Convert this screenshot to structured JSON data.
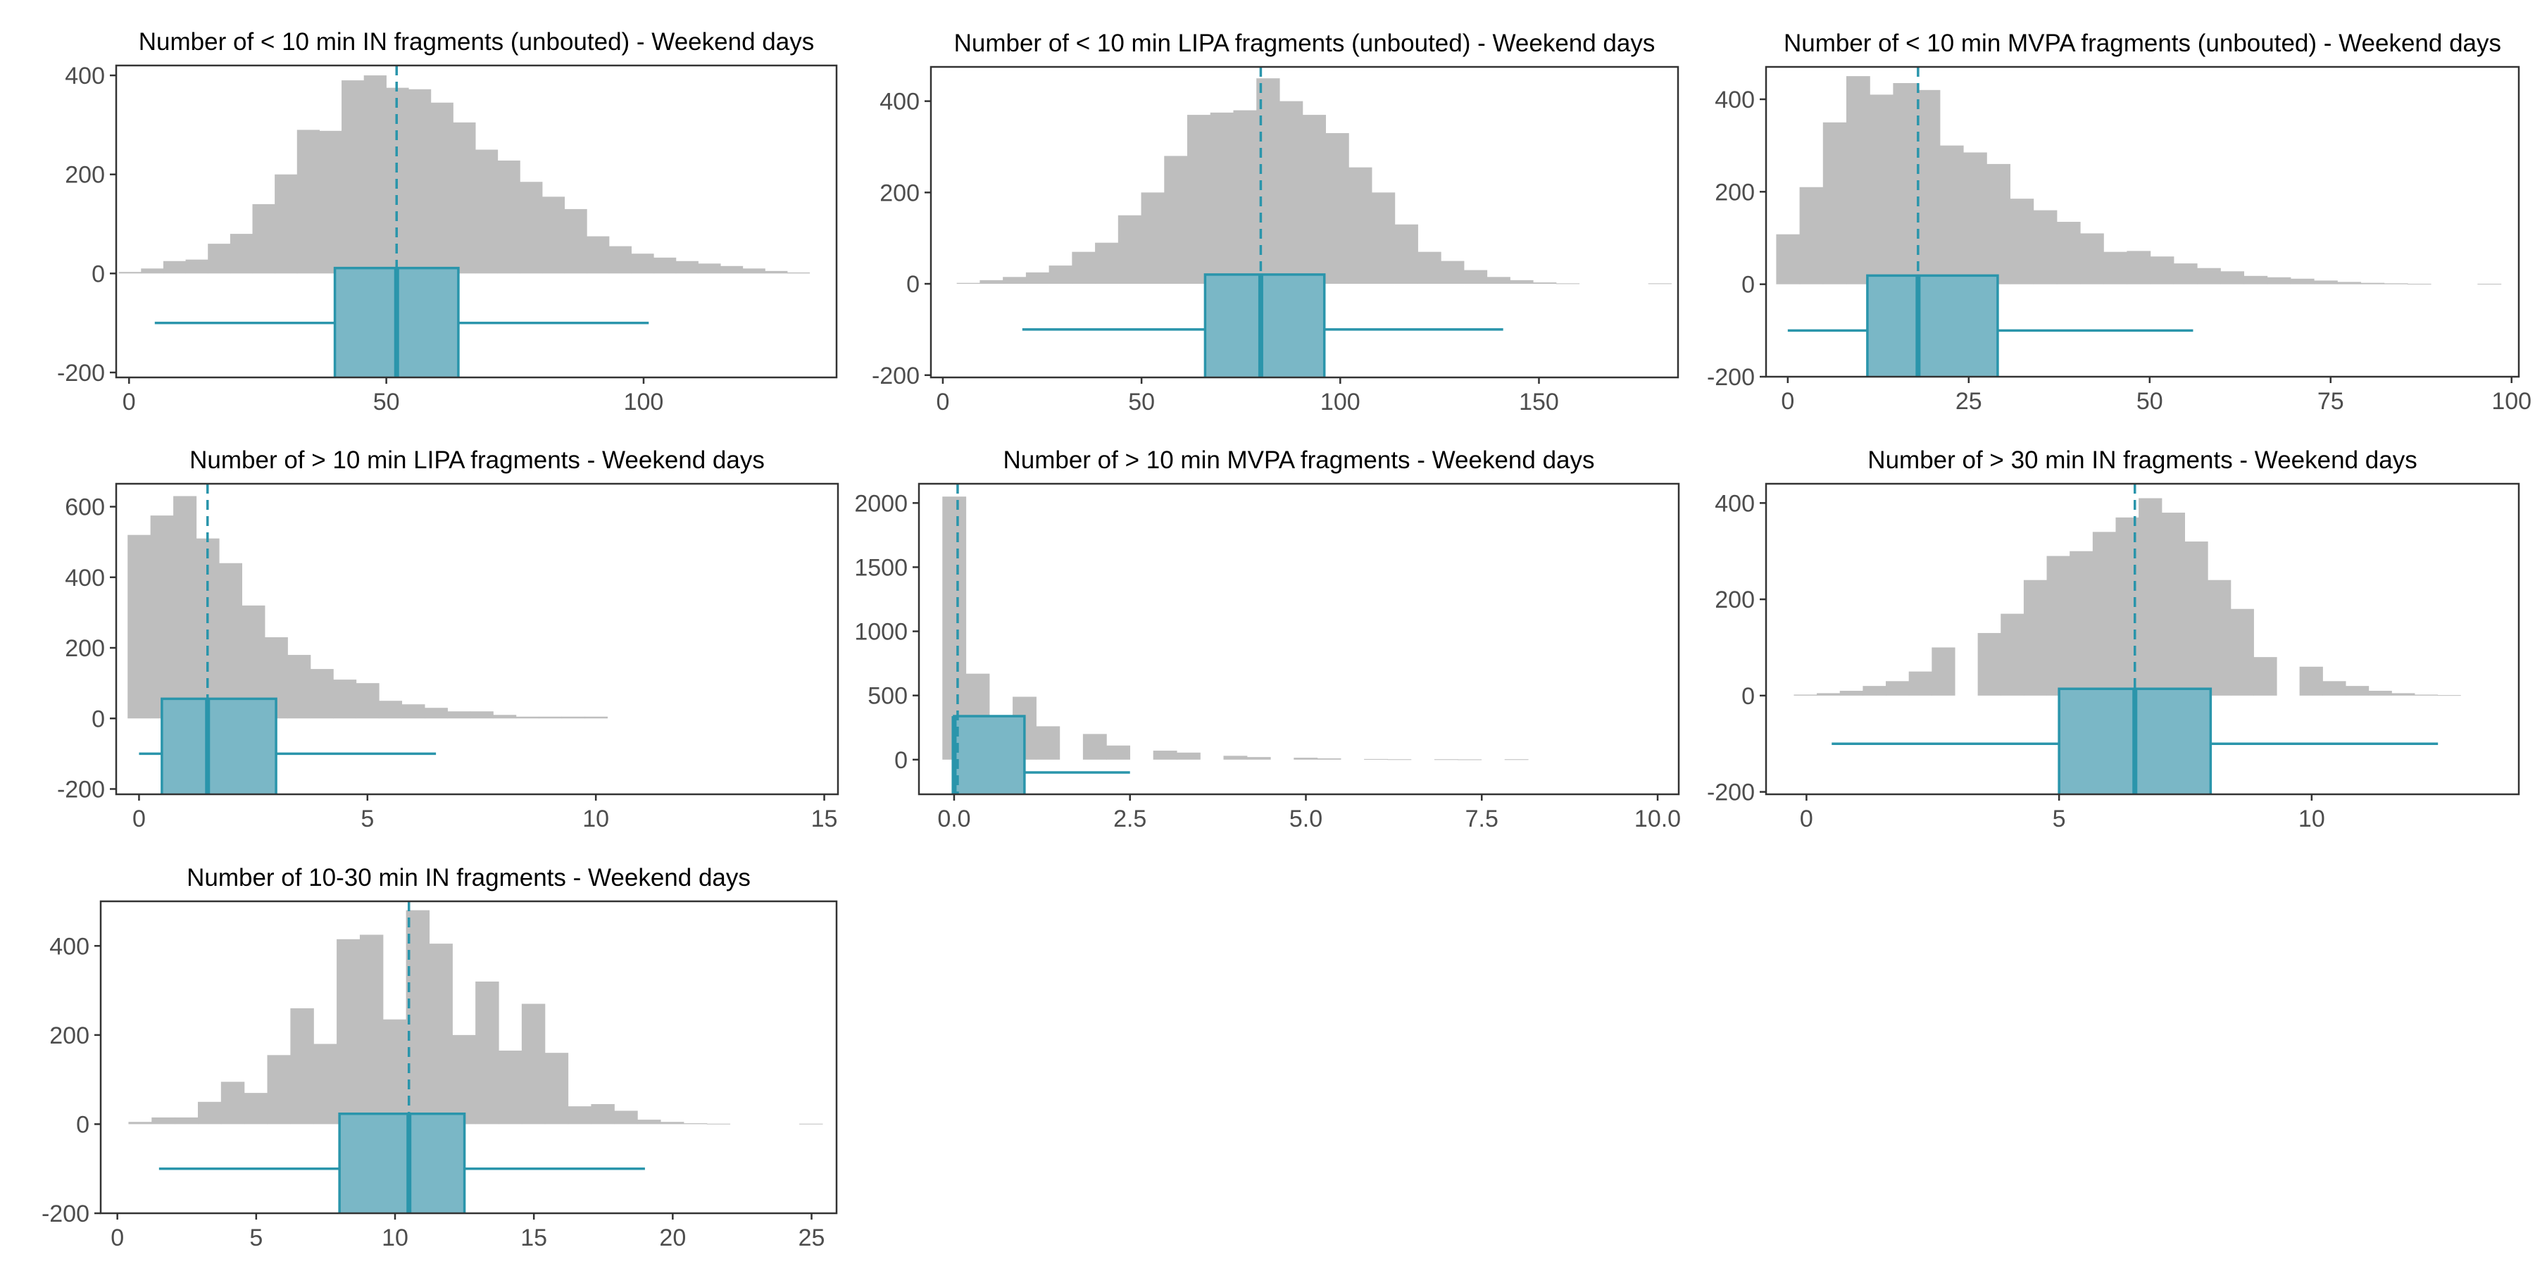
{
  "colors": {
    "histogram": "#bebebe",
    "box_fill": "#7ab7c6",
    "box_line": "#2a95ab",
    "mean_line": "#2a95ab",
    "axis": "#333333",
    "tick_text": "#4d4d4d",
    "title_text": "#000000"
  },
  "chart_data": [
    {
      "type": "bar",
      "title": "Number of < 10 min IN fragments (unbouted) - Weekend days",
      "xlim": [
        -2.5,
        137.5
      ],
      "ylim": [
        -210,
        420
      ],
      "x_ticks": [
        0,
        50,
        100
      ],
      "y_ticks": [
        -200,
        0,
        200,
        400
      ],
      "bin_width": 4.33,
      "bins_start": -2.0,
      "counts": [
        3,
        10,
        25,
        28,
        60,
        80,
        140,
        200,
        290,
        288,
        390,
        400,
        375,
        372,
        345,
        305,
        250,
        228,
        185,
        155,
        130,
        75,
        55,
        40,
        32,
        25,
        20,
        15,
        10,
        5,
        2
      ],
      "boxplot": {
        "whisker_low": 5,
        "q1": 40,
        "median": 52,
        "q3": 64,
        "whisker_high": 101,
        "y_center": -100,
        "half_height": 78
      },
      "mean_line_x": 52
    },
    {
      "type": "bar",
      "title": "Number of < 10 min LIPA fragments (unbouted) - Weekend days",
      "xlim": [
        -3,
        185
      ],
      "ylim": [
        -205,
        475
      ],
      "x_ticks": [
        0,
        50,
        100,
        150
      ],
      "y_ticks": [
        -200,
        0,
        200,
        400
      ],
      "bin_width": 5.8,
      "bins_start": 3.5,
      "counts": [
        2,
        8,
        15,
        25,
        40,
        70,
        90,
        150,
        200,
        280,
        370,
        375,
        380,
        450,
        400,
        370,
        330,
        255,
        200,
        130,
        70,
        50,
        30,
        15,
        8,
        3,
        1,
        0,
        0,
        0,
        1
      ],
      "boxplot": {
        "whisker_low": 20,
        "q1": 66,
        "median": 80,
        "q3": 96,
        "whisker_high": 141,
        "y_center": -100,
        "half_height": 78
      },
      "mean_line_x": 80
    },
    {
      "type": "bar",
      "title": "Number of < 10 min MVPA fragments (unbouted) - Weekend days",
      "xlim": [
        -3,
        101
      ],
      "ylim": [
        -200,
        470
      ],
      "x_ticks": [
        0,
        25,
        50,
        75,
        100
      ],
      "y_ticks": [
        -200,
        0,
        200,
        400
      ],
      "bin_width": 3.23,
      "bins_start": -1.6,
      "counts": [
        108,
        210,
        350,
        450,
        410,
        435,
        420,
        300,
        285,
        260,
        185,
        160,
        135,
        110,
        70,
        72,
        60,
        45,
        35,
        28,
        18,
        15,
        12,
        8,
        5,
        3,
        2,
        1,
        0,
        0,
        1
      ],
      "boxplot": {
        "whisker_low": 0,
        "q1": 11,
        "median": 18,
        "q3": 29,
        "whisker_high": 56,
        "y_center": -100,
        "half_height": 78
      },
      "mean_line_x": 18
    },
    {
      "type": "bar",
      "title": "Number of > 10 min LIPA fragments - Weekend days",
      "xlim": [
        -0.5,
        15.3
      ],
      "ylim": [
        -215,
        665
      ],
      "x_ticks": [
        0,
        5,
        10,
        15
      ],
      "y_ticks": [
        -200,
        0,
        200,
        400,
        600
      ],
      "bin_width": 0.5,
      "bins_start": -0.25,
      "counts": [
        520,
        575,
        630,
        510,
        440,
        320,
        230,
        180,
        140,
        110,
        100,
        50,
        40,
        30,
        20,
        20,
        10,
        5,
        5,
        5,
        5
      ],
      "boxplot": {
        "whisker_low": 0,
        "q1": 0.5,
        "median": 1.5,
        "q3": 3,
        "whisker_high": 6.5,
        "y_center": -100,
        "half_height": 78
      },
      "mean_line_x": 1.5
    },
    {
      "type": "bar",
      "title": "Number of > 10 min MVPA fragments - Weekend days",
      "xlim": [
        -0.5,
        10.3
      ],
      "ylim": [
        -270,
        2150
      ],
      "x_ticks": [
        0.0,
        2.5,
        5.0,
        7.5,
        10.0
      ],
      "x_tick_labels": [
        "0.0",
        "2.5",
        "5.0",
        "7.5",
        "10.0"
      ],
      "y_ticks": [
        0,
        500,
        1000,
        1500,
        2000
      ],
      "bin_width": 0.333,
      "bins_start": -0.167,
      "counts": [
        2050,
        670,
        0,
        490,
        260,
        0,
        200,
        110,
        0,
        70,
        55,
        0,
        30,
        20,
        0,
        15,
        10,
        0,
        5,
        3,
        0,
        3,
        2,
        0,
        3
      ],
      "boxplot": {
        "whisker_low": 0,
        "q1": 0,
        "median": 0,
        "q3": 1,
        "whisker_high": 2.5,
        "y_center": -100,
        "half_height": 80
      },
      "mean_line_x": 0.05
    },
    {
      "type": "bar",
      "title": "Number of > 30 min IN fragments - Weekend days",
      "xlim": [
        -0.8,
        14.1
      ],
      "ylim": [
        -205,
        440
      ],
      "x_ticks": [
        0,
        5,
        10
      ],
      "y_ticks": [
        -200,
        0,
        200,
        400
      ],
      "bin_width": 0.455,
      "bins_start": -0.25,
      "counts": [
        2,
        5,
        10,
        20,
        30,
        50,
        100,
        0,
        130,
        170,
        240,
        290,
        300,
        340,
        370,
        410,
        380,
        320,
        240,
        180,
        80,
        0,
        60,
        30,
        20,
        10,
        5,
        2,
        1,
        0
      ],
      "boxplot": {
        "whisker_low": 0.5,
        "q1": 5,
        "median": 6.5,
        "q3": 8,
        "whisker_high": 12.5,
        "y_center": -100,
        "half_height": 78
      },
      "mean_line_x": 6.5
    },
    {
      "type": "bar",
      "title": "Number of 10-30 min IN fragments - Weekend days",
      "xlim": [
        -0.6,
        25.9
      ],
      "ylim": [
        -200,
        500
      ],
      "x_ticks": [
        0,
        5,
        10,
        15,
        20,
        25
      ],
      "y_ticks": [
        -200,
        0,
        200,
        400
      ],
      "bin_width": 0.833,
      "bins_start": 0.4,
      "counts": [
        5,
        15,
        15,
        50,
        95,
        70,
        155,
        260,
        180,
        415,
        425,
        235,
        480,
        405,
        200,
        320,
        165,
        270,
        160,
        40,
        45,
        30,
        10,
        5,
        2,
        1,
        0,
        0,
        0,
        1
      ],
      "boxplot": {
        "whisker_low": 1.5,
        "q1": 8,
        "median": 10.5,
        "q3": 12.5,
        "whisker_high": 19,
        "y_center": -100,
        "half_height": 78
      },
      "mean_line_x": 10.5
    }
  ]
}
